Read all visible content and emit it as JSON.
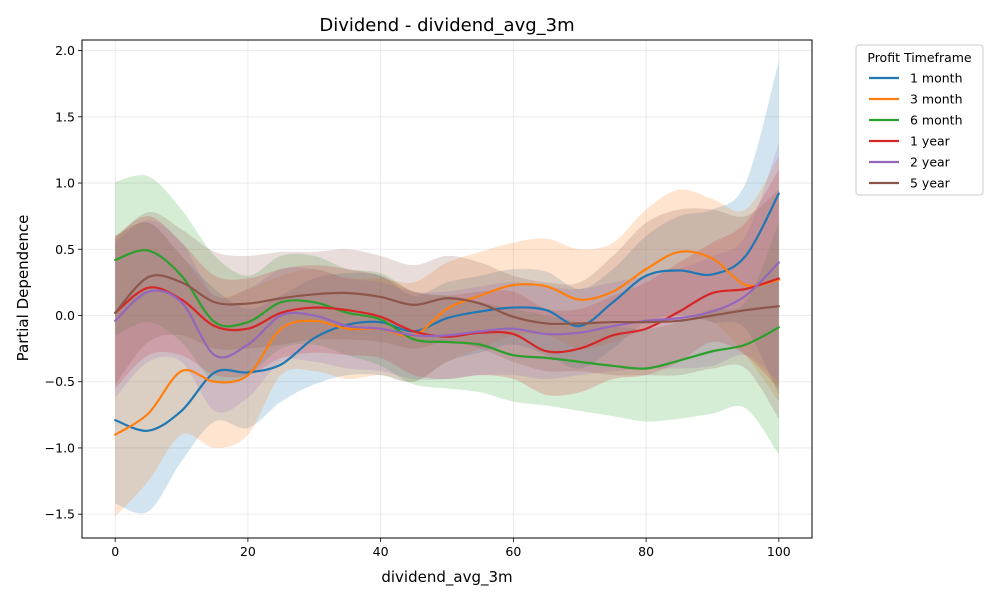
{
  "chart_data": {
    "type": "line",
    "title": "Dividend - dividend_avg_3m",
    "xlabel": "dividend_avg_3m",
    "ylabel": "Partial Dependence",
    "xlim": [
      -5,
      105
    ],
    "ylim": [
      -1.68,
      2.08
    ],
    "xticks": [
      "0",
      "20",
      "40",
      "60",
      "80",
      "100"
    ],
    "xtick_values": [
      0,
      20,
      40,
      60,
      80,
      100
    ],
    "yticks": [
      "−1.5",
      "−1.0",
      "−0.5",
      "0.0",
      "0.5",
      "1.0",
      "1.5",
      "2.0"
    ],
    "ytick_values": [
      -1.5,
      -1.0,
      -0.5,
      0.0,
      0.5,
      1.0,
      1.5,
      2.0
    ],
    "grid": true,
    "legend": {
      "title": "Profit Timeframe",
      "placement": "outside-right"
    },
    "band": "shaded uncertainty range around each series",
    "x": [
      0,
      5,
      10,
      15,
      20,
      25,
      30,
      35,
      40,
      45,
      50,
      55,
      60,
      65,
      70,
      75,
      80,
      85,
      90,
      95,
      100
    ],
    "series": [
      {
        "name": "1 month",
        "color": "#1f77b4",
        "values": [
          -0.79,
          -0.87,
          -0.72,
          -0.43,
          -0.43,
          -0.37,
          -0.17,
          -0.07,
          -0.05,
          -0.12,
          -0.02,
          0.03,
          0.06,
          0.04,
          -0.08,
          0.1,
          0.3,
          0.34,
          0.31,
          0.45,
          0.92
        ],
        "upper": [
          0.6,
          0.7,
          0.45,
          0.2,
          0.05,
          0.15,
          0.28,
          0.32,
          0.3,
          0.15,
          0.25,
          0.3,
          0.35,
          0.33,
          0.2,
          0.35,
          0.6,
          0.75,
          0.8,
          1.0,
          1.92
        ],
        "lower": [
          -1.42,
          -1.48,
          -1.1,
          -0.8,
          -0.85,
          -0.65,
          -0.52,
          -0.45,
          -0.45,
          -0.5,
          -0.35,
          -0.28,
          -0.22,
          -0.3,
          -0.4,
          -0.25,
          -0.05,
          0.0,
          -0.05,
          -0.1,
          -0.6
        ]
      },
      {
        "name": "3 month",
        "color": "#ff7f0e",
        "values": [
          -0.9,
          -0.74,
          -0.42,
          -0.5,
          -0.45,
          -0.1,
          -0.04,
          -0.1,
          -0.1,
          -0.15,
          0.05,
          0.15,
          0.23,
          0.22,
          0.12,
          0.18,
          0.35,
          0.48,
          0.43,
          0.23,
          0.27
        ],
        "upper": [
          0.6,
          0.7,
          0.45,
          0.15,
          0.2,
          0.3,
          0.35,
          0.28,
          0.28,
          0.25,
          0.4,
          0.48,
          0.55,
          0.58,
          0.5,
          0.55,
          0.8,
          0.95,
          0.88,
          0.8,
          1.2
        ],
        "lower": [
          -1.52,
          -1.25,
          -0.9,
          -1.0,
          -0.9,
          -0.45,
          -0.42,
          -0.48,
          -0.45,
          -0.5,
          -0.35,
          -0.25,
          -0.15,
          -0.15,
          -0.25,
          -0.2,
          -0.1,
          0.0,
          -0.05,
          -0.3,
          -0.65
        ]
      },
      {
        "name": "6 month",
        "color": "#2ca02c",
        "values": [
          0.42,
          0.49,
          0.3,
          -0.05,
          -0.05,
          0.1,
          0.1,
          0.02,
          -0.03,
          -0.18,
          -0.2,
          -0.22,
          -0.3,
          -0.32,
          -0.35,
          -0.38,
          -0.4,
          -0.34,
          -0.27,
          -0.22,
          -0.09
        ],
        "upper": [
          1.01,
          1.05,
          0.8,
          0.45,
          0.3,
          0.45,
          0.45,
          0.35,
          0.32,
          0.18,
          0.15,
          0.1,
          0.05,
          0.0,
          -0.05,
          -0.08,
          -0.1,
          -0.05,
          0.05,
          0.1,
          0.7
        ],
        "lower": [
          -0.15,
          -0.05,
          -0.2,
          -0.5,
          -0.45,
          -0.25,
          -0.22,
          -0.3,
          -0.38,
          -0.52,
          -0.55,
          -0.58,
          -0.65,
          -0.68,
          -0.72,
          -0.76,
          -0.8,
          -0.78,
          -0.74,
          -0.7,
          -1.05
        ]
      },
      {
        "name": "1 year",
        "color": "#d62728",
        "values": [
          0.02,
          0.21,
          0.12,
          -0.08,
          -0.1,
          0.02,
          0.06,
          0.04,
          -0.01,
          -0.12,
          -0.16,
          -0.13,
          -0.14,
          -0.27,
          -0.25,
          -0.15,
          -0.1,
          0.03,
          0.17,
          0.2,
          0.28
        ],
        "upper": [
          0.6,
          0.75,
          0.55,
          0.3,
          0.28,
          0.35,
          0.38,
          0.35,
          0.3,
          0.18,
          0.15,
          0.18,
          0.18,
          0.05,
          0.05,
          0.15,
          0.25,
          0.4,
          0.55,
          0.7,
          1.1
        ],
        "lower": [
          -0.55,
          -0.3,
          -0.3,
          -0.45,
          -0.45,
          -0.32,
          -0.28,
          -0.3,
          -0.32,
          -0.45,
          -0.48,
          -0.45,
          -0.48,
          -0.6,
          -0.58,
          -0.48,
          -0.45,
          -0.35,
          -0.2,
          -0.3,
          -0.55
        ]
      },
      {
        "name": "2 year",
        "color": "#9467bd",
        "values": [
          -0.04,
          0.18,
          0.1,
          -0.3,
          -0.22,
          0.0,
          0.0,
          -0.08,
          -0.1,
          -0.15,
          -0.15,
          -0.12,
          -0.1,
          -0.14,
          -0.13,
          -0.08,
          -0.04,
          -0.02,
          0.03,
          0.15,
          0.4
        ],
        "upper": [
          0.55,
          0.72,
          0.55,
          0.15,
          0.2,
          0.35,
          0.35,
          0.28,
          0.25,
          0.18,
          0.18,
          0.22,
          0.25,
          0.22,
          0.2,
          0.25,
          0.3,
          0.35,
          0.45,
          0.6,
          1.3
        ],
        "lower": [
          -0.62,
          -0.35,
          -0.35,
          -0.72,
          -0.62,
          -0.35,
          -0.35,
          -0.4,
          -0.42,
          -0.48,
          -0.48,
          -0.45,
          -0.45,
          -0.48,
          -0.45,
          -0.42,
          -0.4,
          -0.4,
          -0.38,
          -0.3,
          -0.5
        ]
      },
      {
        "name": "5 year",
        "color": "#8c564b",
        "values": [
          0.02,
          0.29,
          0.25,
          0.1,
          0.09,
          0.13,
          0.16,
          0.17,
          0.14,
          0.08,
          0.13,
          0.09,
          -0.01,
          -0.06,
          -0.06,
          -0.05,
          -0.05,
          -0.04,
          0.0,
          0.04,
          0.07
        ],
        "upper": [
          0.58,
          0.78,
          0.65,
          0.48,
          0.45,
          0.48,
          0.48,
          0.5,
          0.45,
          0.38,
          0.45,
          0.4,
          0.3,
          0.25,
          0.25,
          0.45,
          0.7,
          0.8,
          0.8,
          0.75,
          0.95
        ],
        "lower": [
          -0.52,
          -0.2,
          -0.15,
          -0.25,
          -0.25,
          -0.22,
          -0.18,
          -0.18,
          -0.2,
          -0.25,
          -0.2,
          -0.25,
          -0.35,
          -0.42,
          -0.42,
          -0.45,
          -0.45,
          -0.45,
          -0.4,
          -0.4,
          -0.78
        ]
      }
    ]
  }
}
